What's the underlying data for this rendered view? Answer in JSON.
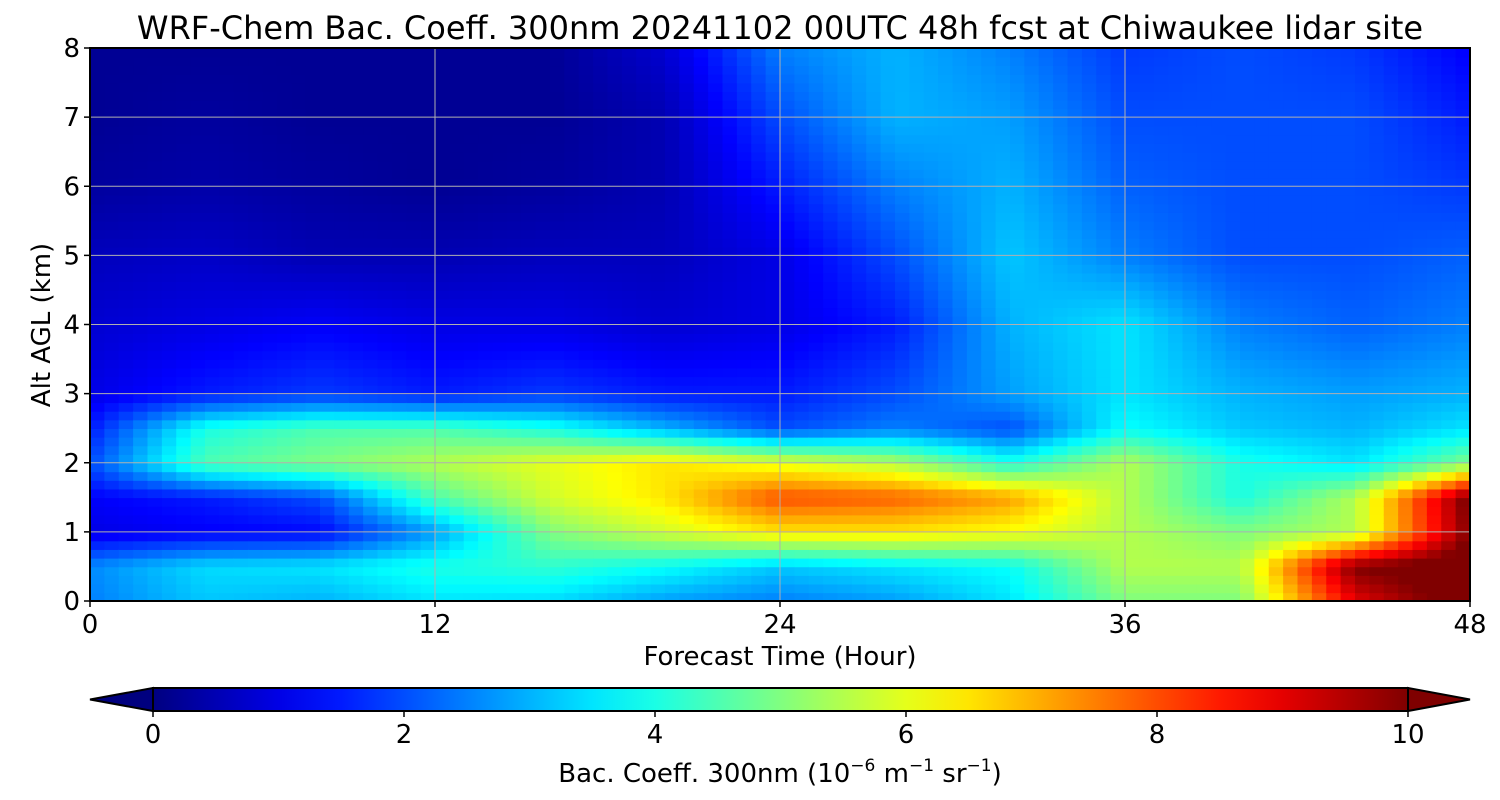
{
  "chart_data": {
    "type": "heatmap",
    "title": "WRF-Chem Bac. Coeff. 300nm  20241102 00UTC 48h fcst at Chiwaukee lidar site",
    "xlabel": "Forecast Time (Hour)",
    "ylabel": "Alt AGL (km)",
    "xlim": [
      0,
      48
    ],
    "ylim": [
      0,
      8
    ],
    "x_ticks": [
      0,
      12,
      24,
      36,
      48
    ],
    "y_ticks": [
      0,
      1,
      2,
      3,
      4,
      5,
      6,
      7,
      8
    ],
    "grid": true,
    "colormap": "jet",
    "colorbar": {
      "orientation": "horizontal",
      "placement": "bottom",
      "range": [
        0,
        10
      ],
      "ticks": [
        0,
        2,
        4,
        6,
        8,
        10
      ],
      "extend": "both",
      "label_prefix": "Bac. Coeff. 300nm  (10",
      "label_exp1": "−6",
      "label_mid": " m",
      "label_exp2": "−1",
      "label_mid2": " sr",
      "label_exp3": "−1",
      "label_suffix": ")"
    },
    "x": [
      0,
      4,
      8,
      12,
      16,
      20,
      24,
      28,
      32,
      36,
      40,
      44,
      48
    ],
    "y": [
      0,
      0.5,
      1,
      1.5,
      2,
      2.5,
      3,
      4,
      5,
      6,
      7,
      8
    ],
    "z": [
      [
        2.5,
        3.2,
        3.0,
        3.5,
        3.4,
        2.8,
        2.5,
        2.8,
        3.5,
        5.0,
        5.0,
        9.0,
        10.5
      ],
      [
        2.6,
        3.4,
        3.5,
        4.0,
        4.2,
        3.8,
        3.2,
        3.5,
        3.8,
        5.5,
        5.5,
        10.0,
        10.5
      ],
      [
        1.0,
        1.2,
        1.3,
        2.8,
        5.0,
        5.8,
        6.5,
        6.5,
        6.2,
        5.5,
        5.0,
        5.5,
        10.0
      ],
      [
        1.2,
        1.5,
        2.0,
        4.5,
        5.8,
        6.5,
        8.0,
        7.8,
        7.2,
        5.5,
        4.0,
        5.5,
        10.2
      ],
      [
        2.0,
        4.5,
        5.0,
        5.5,
        6.0,
        6.5,
        6.0,
        5.5,
        4.0,
        5.5,
        4.0,
        3.5,
        5.0
      ],
      [
        1.5,
        4.0,
        4.5,
        4.5,
        4.0,
        3.0,
        2.0,
        2.5,
        2.0,
        3.8,
        3.2,
        3.0,
        3.5
      ],
      [
        1.0,
        1.5,
        1.8,
        1.5,
        1.8,
        1.5,
        1.5,
        2.0,
        2.8,
        3.5,
        3.0,
        2.8,
        3.0
      ],
      [
        0.8,
        1.0,
        1.2,
        1.0,
        1.0,
        0.8,
        1.0,
        1.5,
        3.0,
        3.5,
        2.5,
        2.2,
        2.5
      ],
      [
        0.6,
        0.7,
        0.5,
        0.5,
        0.6,
        0.6,
        1.0,
        2.0,
        3.2,
        2.5,
        2.0,
        2.0,
        2.2
      ],
      [
        0.3,
        0.4,
        0.3,
        0.2,
        0.3,
        0.5,
        1.5,
        2.5,
        3.0,
        2.2,
        2.0,
        2.0,
        1.8
      ],
      [
        0.2,
        0.3,
        0.2,
        0.2,
        0.2,
        0.5,
        2.0,
        3.0,
        2.8,
        2.0,
        2.0,
        2.0,
        1.5
      ],
      [
        0.2,
        0.2,
        0.2,
        0.2,
        0.2,
        0.8,
        2.5,
        3.0,
        2.5,
        1.8,
        2.0,
        1.8,
        1.2
      ]
    ]
  }
}
